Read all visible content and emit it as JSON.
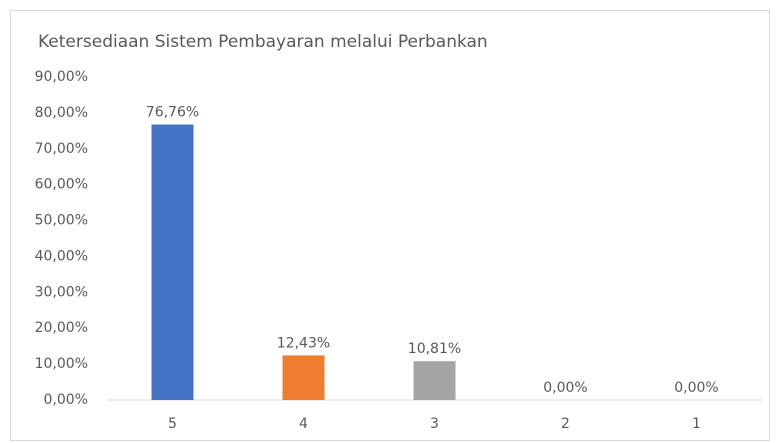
{
  "chart_data": {
    "type": "bar",
    "title": "Ketersediaan Sistem Pembayaran melalui Perbankan",
    "categories": [
      "5",
      "4",
      "3",
      "2",
      "1"
    ],
    "values": [
      76.76,
      12.43,
      10.81,
      0,
      0
    ],
    "value_labels": [
      "76,76%",
      "12,43%",
      "10,81%",
      "0,00%",
      "0,00%"
    ],
    "colors": [
      "#4472c4",
      "#ed7d31",
      "#a5a5a5",
      "#ffc000",
      "#5b9bd5"
    ],
    "ylim": [
      0,
      90
    ],
    "yticks": [
      {
        "value": 0,
        "label": "0,00%"
      },
      {
        "value": 10,
        "label": "10,00%"
      },
      {
        "value": 20,
        "label": "20,00%"
      },
      {
        "value": 30,
        "label": "30,00%"
      },
      {
        "value": 40,
        "label": "40,00%"
      },
      {
        "value": 50,
        "label": "50,00%"
      },
      {
        "value": 60,
        "label": "60,00%"
      },
      {
        "value": 70,
        "label": "70,00%"
      },
      {
        "value": 80,
        "label": "80,00%"
      },
      {
        "value": 90,
        "label": "90,00%"
      }
    ],
    "grid": false
  }
}
